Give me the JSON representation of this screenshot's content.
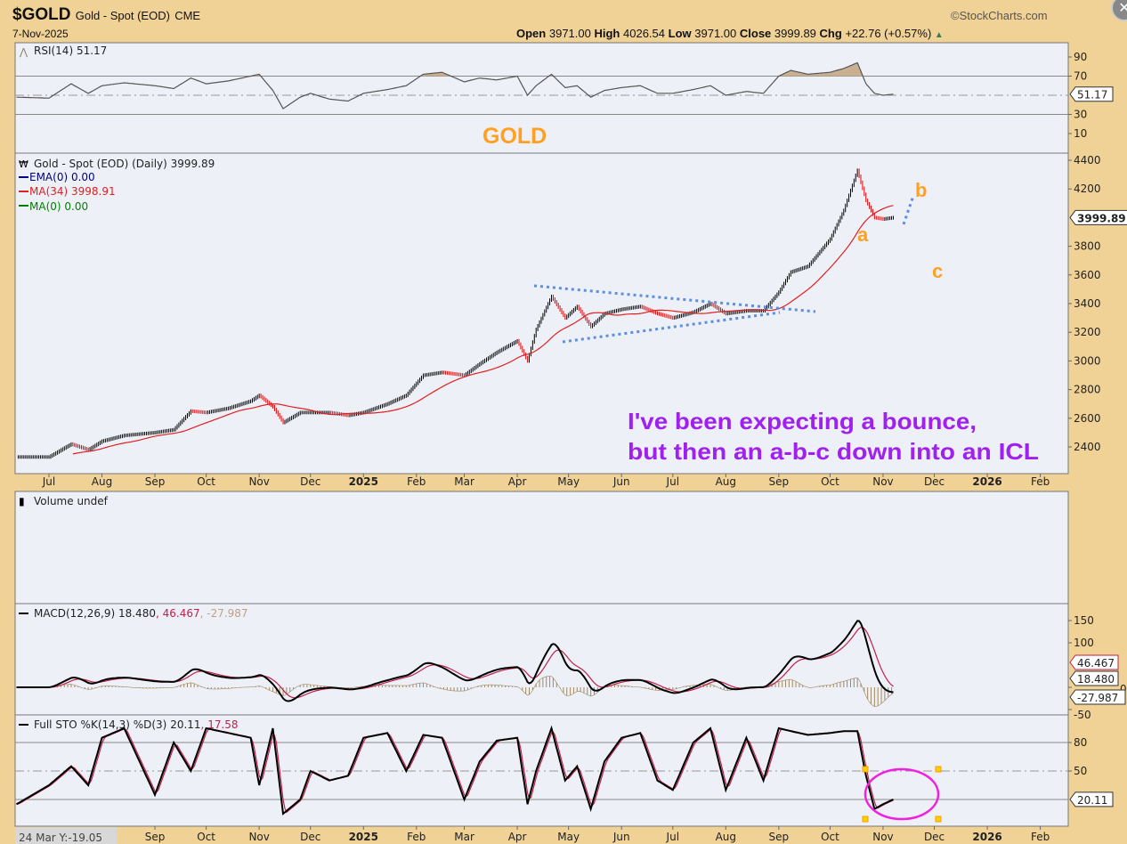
{
  "header": {
    "symbol": "$GOLD",
    "name": "Gold - Spot (EOD)",
    "exchange": "CME",
    "date": "7-Nov-2025",
    "brand": "©StockCharts.com",
    "open_label": "Open",
    "open": "3971.00",
    "high_label": "High",
    "high": "4026.54",
    "low_label": "Low",
    "low": "3971.00",
    "close_label": "Close",
    "close": "3999.89",
    "chg_label": "Chg",
    "chg": "+22.76 (+0.57%)",
    "chg_arrow": "▲"
  },
  "colors": {
    "frame": "#F0D296",
    "panel": "#EEF0F8",
    "up": "#000000",
    "down": "#E00000",
    "ma": "#E02020",
    "annotation_text": "#A020F0",
    "wave_labels": "#FFA020",
    "trendlines": "#5B8FE0",
    "ellipse": "#F020E0"
  },
  "chart_data": [
    {
      "type": "line",
      "title": "RSI(14) 51.17",
      "legend": "RSI(14) 51.17",
      "ylim": [
        0,
        100
      ],
      "ticks": [
        "90",
        "70",
        "30",
        "10"
      ],
      "reference_lines": [
        70,
        50,
        30
      ],
      "last_value_tag": "51.17",
      "x": [
        "2024-06-12",
        "2024-07-01",
        "2024-07-14",
        "2024-07-24",
        "2024-08-01",
        "2024-08-14",
        "2024-09-01",
        "2024-09-12",
        "2024-09-22",
        "2024-10-01",
        "2024-10-14",
        "2024-10-27",
        "2024-11-01",
        "2024-11-09",
        "2024-11-15",
        "2024-11-25",
        "2024-12-01",
        "2024-12-12",
        "2024-12-23",
        "2025-01-01",
        "2025-01-15",
        "2025-01-26",
        "2025-02-05",
        "2025-02-16",
        "2025-03-01",
        "2025-03-10",
        "2025-03-20",
        "2025-04-01",
        "2025-04-07",
        "2025-04-12",
        "2025-04-21",
        "2025-04-29",
        "2025-05-06",
        "2025-05-14",
        "2025-05-22",
        "2025-06-01",
        "2025-06-12",
        "2025-06-22",
        "2025-07-01",
        "2025-07-13",
        "2025-07-23",
        "2025-08-01",
        "2025-08-13",
        "2025-08-23",
        "2025-09-01",
        "2025-09-08",
        "2025-09-18",
        "2025-10-01",
        "2025-10-09",
        "2025-10-17",
        "2025-10-22",
        "2025-10-27",
        "2025-11-01",
        "2025-11-07"
      ],
      "values": [
        48,
        47,
        62,
        52,
        60,
        63,
        60,
        57,
        68,
        62,
        65,
        70,
        72,
        55,
        36,
        48,
        52,
        46,
        44,
        52,
        56,
        60,
        72,
        74,
        64,
        68,
        66,
        70,
        50,
        60,
        72,
        58,
        60,
        48,
        55,
        58,
        60,
        52,
        52,
        56,
        60,
        50,
        54,
        52,
        70,
        76,
        72,
        74,
        78,
        84,
        62,
        52,
        50,
        51.17
      ]
    },
    {
      "type": "bar",
      "subtype": "candlestick",
      "legend": "Gold - Spot (EOD) (Daily) 3999.89",
      "overlays": [
        {
          "name": "EMA(0) 0.00",
          "color": "#000080"
        },
        {
          "name": "MA(34) 3998.91",
          "color": "#E02020",
          "period": 34
        },
        {
          "name": "MA(0) 0.00",
          "color": "#008000"
        }
      ],
      "ylim": [
        2250,
        4450
      ],
      "ticks": [
        "4400",
        "4200",
        "3800",
        "3600",
        "3400",
        "3200",
        "3000",
        "2800",
        "2600",
        "2400"
      ],
      "last_value_tag": "3999.89",
      "x_ticks": [
        "Jul",
        "Aug",
        "Sep",
        "Oct",
        "Nov",
        "Dec",
        "2025",
        "Feb",
        "Mar",
        "Apr",
        "May",
        "Jun",
        "Jul",
        "Aug",
        "Sep",
        "Oct",
        "Nov",
        "Dec",
        "2026",
        "Feb"
      ],
      "x": [
        "2024-06-12",
        "2024-07-01",
        "2024-07-14",
        "2024-07-24",
        "2024-08-01",
        "2024-08-14",
        "2024-09-01",
        "2024-09-12",
        "2024-09-22",
        "2024-10-01",
        "2024-10-14",
        "2024-10-27",
        "2024-11-01",
        "2024-11-09",
        "2024-11-15",
        "2024-11-25",
        "2024-12-01",
        "2024-12-12",
        "2024-12-23",
        "2025-01-01",
        "2025-01-15",
        "2025-01-26",
        "2025-02-05",
        "2025-02-16",
        "2025-03-01",
        "2025-03-10",
        "2025-03-20",
        "2025-04-01",
        "2025-04-07",
        "2025-04-12",
        "2025-04-21",
        "2025-04-29",
        "2025-05-06",
        "2025-05-14",
        "2025-05-22",
        "2025-06-01",
        "2025-06-12",
        "2025-06-22",
        "2025-07-01",
        "2025-07-13",
        "2025-07-23",
        "2025-08-01",
        "2025-08-13",
        "2025-08-23",
        "2025-09-01",
        "2025-09-08",
        "2025-09-18",
        "2025-10-01",
        "2025-10-09",
        "2025-10-17",
        "2025-10-22",
        "2025-10-27",
        "2025-11-01",
        "2025-11-07"
      ],
      "values": [
        2330,
        2330,
        2420,
        2380,
        2440,
        2480,
        2500,
        2520,
        2650,
        2640,
        2670,
        2720,
        2760,
        2680,
        2570,
        2640,
        2640,
        2640,
        2620,
        2640,
        2700,
        2760,
        2900,
        2920,
        2900,
        2980,
        3060,
        3140,
        3000,
        3220,
        3450,
        3300,
        3380,
        3240,
        3330,
        3360,
        3380,
        3330,
        3300,
        3340,
        3400,
        3330,
        3350,
        3350,
        3480,
        3620,
        3660,
        3850,
        4050,
        4330,
        4120,
        4000,
        3990,
        3999.89
      ]
    },
    {
      "type": "bar",
      "legend": "Volume undef"
    },
    {
      "type": "line",
      "legend": "MACD(12,26,9)",
      "legend_values": [
        "18.480",
        "46.467",
        "-27.987"
      ],
      "series": [
        {
          "name": "MACD",
          "color": "#000000",
          "last": "18.480"
        },
        {
          "name": "Signal",
          "color": "#C0204A",
          "last": "46.467"
        },
        {
          "name": "Histogram",
          "color": "#A08A60",
          "last": "-27.987"
        }
      ],
      "ylim": [
        -60,
        190
      ],
      "ticks": [
        "150",
        "100",
        "0",
        "-50"
      ]
    },
    {
      "type": "line",
      "legend": "Full STO %K(14,3) %D(3)",
      "legend_values": [
        "20.11",
        "17.58"
      ],
      "ylim": [
        -5,
        110
      ],
      "ticks": [
        "80",
        "50"
      ],
      "reference_lines": [
        80,
        50,
        20
      ],
      "last_value_tag": "20.11",
      "x": [
        "2024-06-12",
        "2024-07-01",
        "2024-07-14",
        "2024-07-24",
        "2024-08-01",
        "2024-08-14",
        "2024-09-01",
        "2024-09-12",
        "2024-09-22",
        "2024-10-01",
        "2024-10-14",
        "2024-10-27",
        "2024-11-01",
        "2024-11-09",
        "2024-11-15",
        "2024-11-25",
        "2024-12-01",
        "2024-12-12",
        "2024-12-23",
        "2025-01-01",
        "2025-01-15",
        "2025-01-26",
        "2025-02-05",
        "2025-02-16",
        "2025-03-01",
        "2025-03-10",
        "2025-03-20",
        "2025-04-01",
        "2025-04-07",
        "2025-04-12",
        "2025-04-21",
        "2025-04-29",
        "2025-05-06",
        "2025-05-14",
        "2025-05-22",
        "2025-06-01",
        "2025-06-12",
        "2025-06-22",
        "2025-07-01",
        "2025-07-13",
        "2025-07-23",
        "2025-08-01",
        "2025-08-13",
        "2025-08-23",
        "2025-09-01",
        "2025-09-08",
        "2025-09-18",
        "2025-10-01",
        "2025-10-09",
        "2025-10-17",
        "2025-10-22",
        "2025-10-27",
        "2025-11-01",
        "2025-11-07"
      ],
      "values_k": [
        15,
        35,
        55,
        35,
        85,
        95,
        25,
        80,
        50,
        95,
        90,
        85,
        35,
        95,
        5,
        20,
        50,
        40,
        45,
        85,
        90,
        50,
        88,
        85,
        20,
        60,
        82,
        85,
        15,
        50,
        95,
        40,
        55,
        10,
        60,
        85,
        90,
        40,
        30,
        80,
        95,
        30,
        85,
        40,
        95,
        92,
        88,
        90,
        92,
        92,
        45,
        10,
        15,
        20.11
      ]
    }
  ],
  "annotations": {
    "panel_title": "GOLD",
    "wave_a": "a",
    "wave_b": "b",
    "wave_c": "c",
    "comment_line1": "I've been expecting a bounce,",
    "comment_line2": "but then an a-b-c down into an ICL"
  },
  "footer": {
    "cursor_readout": "24 Mar Y:-19.05"
  }
}
